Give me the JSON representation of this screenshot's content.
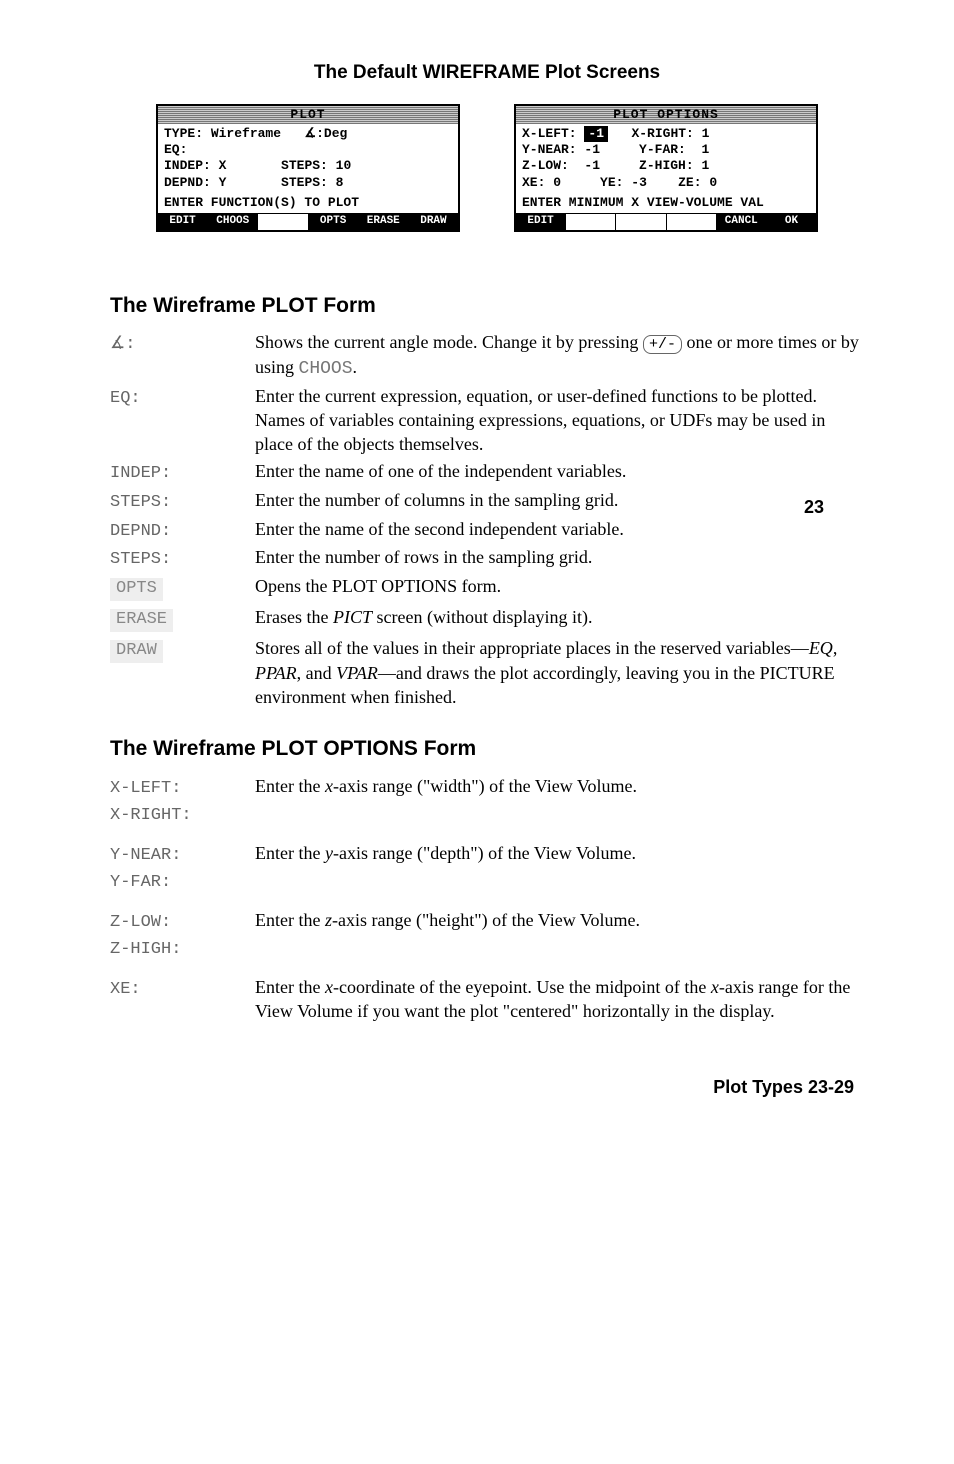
{
  "title": "The Default WIREFRAME Plot Screens",
  "screen_left": {
    "title": "PLOT",
    "type_label": "TYPE:",
    "type_value": "Wireframe",
    "angle_label": "∡:",
    "angle_value": "Deg",
    "eq_label": "EQ:",
    "indep_label": "INDEP:",
    "indep_value": "X",
    "steps1_label": "STEPS:",
    "steps1_value": "10",
    "depnd_label": "DEPND:",
    "depnd_value": "Y",
    "steps2_label": "STEPS:",
    "steps2_value": "8",
    "prompt": "ENTER FUNCTION(S) TO PLOT",
    "softkeys": [
      "EDIT",
      "CHOOS",
      "",
      "OPTS",
      "ERASE",
      "DRAW"
    ]
  },
  "screen_right": {
    "title": "PLOT OPTIONS",
    "xleft_label": "X-LEFT:",
    "xleft_value": "-1",
    "xright_label": "X-RIGHT:",
    "xright_value": "1",
    "ynear_label": "Y-NEAR:",
    "ynear_value": "-1",
    "yfar_label": "Y-FAR:",
    "yfar_value": "1",
    "zlow_label": "Z-LOW:",
    "zlow_value": "-1",
    "zhigh_label": "Z-HIGH:",
    "zhigh_value": "1",
    "xe_label": "XE:",
    "xe_value": "0",
    "ye_label": "YE:",
    "ye_value": "-3",
    "ze_label": "ZE:",
    "ze_value": "0",
    "prompt": "ENTER MINIMUM X VIEW-VOLUME VAL",
    "softkeys": [
      "EDIT",
      "",
      "",
      "",
      "CANCL",
      "OK"
    ]
  },
  "section1_heading": "The Wireframe PLOT Form",
  "side_page_number": "23",
  "plot_form": [
    {
      "term": "∡:",
      "desc": "Shows the current angle mode. Change it by pressing <span class=\"keycap\">+/-</span> one or more times or by using <span class=\"mono-inline\">CHOOS</span>."
    },
    {
      "term": "EQ:",
      "desc": "Enter the current expression, equation, or user-defined functions to be plotted. Names of variables containing expressions, equations, or UDFs may be used in place of the objects themselves."
    },
    {
      "term": "INDEP:",
      "desc": "Enter the name of one of the independent variables."
    },
    {
      "term": "STEPS:",
      "desc": "Enter the number of columns in the sampling grid."
    },
    {
      "term": "DEPND:",
      "desc": "Enter the name of the second independent variable."
    },
    {
      "term": "STEPS:",
      "desc": "Enter the number of rows in the sampling grid."
    },
    {
      "term": "OPTS",
      "desc": "Opens the PLOT OPTIONS form.",
      "soft": true
    },
    {
      "term": "ERASE",
      "desc": "Erases the <i>PICT</i> screen (without displaying it).",
      "soft": true
    },
    {
      "term": "DRAW",
      "desc": "Stores all of the values in their appropriate places in the reserved variables—<i>EQ</i>, <i>PPAR</i>, and <i>VPAR</i>—and draws the plot accordingly, leaving you in the PICTURE environment when finished.",
      "soft": true
    }
  ],
  "section2_heading": "The Wireframe PLOT OPTIONS Form",
  "plot_options": [
    {
      "terms": [
        "X-LEFT:",
        "X-RIGHT:"
      ],
      "desc": "Enter the <i>x</i>-axis range (\"width\") of the View Volume."
    },
    {
      "terms": [
        "Y-NEAR:",
        "Y-FAR:"
      ],
      "desc": "Enter the <i>y</i>-axis range (\"depth\") of the View Volume."
    },
    {
      "terms": [
        "Z-LOW:",
        "Z-HIGH:"
      ],
      "desc": "Enter the <i>z</i>-axis range (\"height\") of the View Volume."
    },
    {
      "terms": [
        "XE:"
      ],
      "desc": "Enter the <i>x</i>-coordinate of the eyepoint. Use the midpoint of the <i>x</i>-axis range for the View Volume if you want the plot \"centered\" horizontally in the display."
    }
  ],
  "footer": "Plot Types   23-29"
}
